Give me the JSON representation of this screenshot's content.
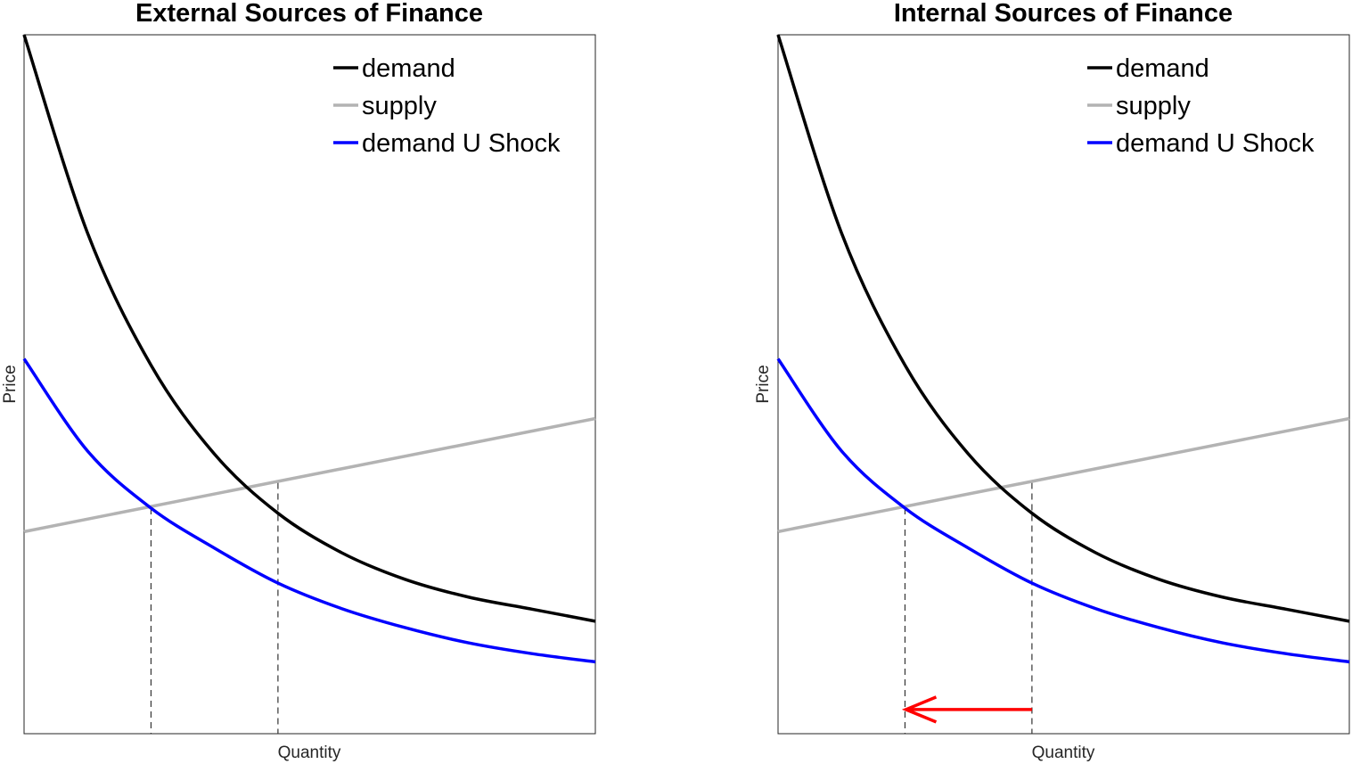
{
  "chart_data": [
    {
      "type": "line",
      "title": "External Sources of Finance",
      "xlabel": "Quantity",
      "ylabel": "Price",
      "xlim": [
        0,
        4.5
      ],
      "ylim": [
        0,
        11
      ],
      "grid": false,
      "legend_position": "top-right",
      "series": [
        {
          "name": "demand",
          "color": "#000000",
          "x": [
            0,
            0.5,
            1,
            1.5,
            2,
            2.5,
            3,
            3.5,
            4,
            4.5
          ],
          "y": [
            11.0,
            7.88,
            5.8,
            4.4,
            3.47,
            2.85,
            2.43,
            2.15,
            1.96,
            1.77
          ]
        },
        {
          "name": "supply",
          "color": "#b3b3b3",
          "x": [
            0,
            4.5
          ],
          "y": [
            3.18,
            4.96
          ]
        },
        {
          "name": "demand U Shock",
          "color": "#0000ff",
          "x": [
            0,
            0.5,
            1,
            1.5,
            2,
            2.5,
            3,
            3.5,
            4,
            4.5
          ],
          "y": [
            5.9,
            4.45,
            3.55,
            2.92,
            2.37,
            1.97,
            1.67,
            1.43,
            1.26,
            1.13
          ]
        }
      ],
      "equilibria": [
        {
          "x": 1.0,
          "y": 3.55
        },
        {
          "x": 2.0,
          "y": 3.95
        }
      ],
      "arrow": null
    },
    {
      "type": "line",
      "title": "Internal Sources of Finance",
      "xlabel": "Quantity",
      "ylabel": "Price",
      "xlim": [
        0,
        4.5
      ],
      "ylim": [
        0,
        11
      ],
      "grid": false,
      "legend_position": "top-right",
      "series": [
        {
          "name": "demand",
          "color": "#000000",
          "x": [
            0,
            0.5,
            1,
            1.5,
            2,
            2.5,
            3,
            3.5,
            4,
            4.5
          ],
          "y": [
            11.0,
            7.88,
            5.8,
            4.4,
            3.47,
            2.85,
            2.43,
            2.15,
            1.96,
            1.77
          ]
        },
        {
          "name": "supply",
          "color": "#b3b3b3",
          "x": [
            0,
            4.5
          ],
          "y": [
            3.18,
            4.96
          ]
        },
        {
          "name": "demand U Shock",
          "color": "#0000ff",
          "x": [
            0,
            0.5,
            1,
            1.5,
            2,
            2.5,
            3,
            3.5,
            4,
            4.5
          ],
          "y": [
            5.9,
            4.45,
            3.55,
            2.92,
            2.37,
            1.97,
            1.67,
            1.43,
            1.26,
            1.13
          ]
        }
      ],
      "equilibria": [
        {
          "x": 1.0,
          "y": 3.55
        },
        {
          "x": 2.0,
          "y": 3.95
        }
      ],
      "arrow": {
        "from_x": 2.0,
        "to_x": 1.0,
        "y": 0.38,
        "color": "#ff0000"
      }
    }
  ]
}
